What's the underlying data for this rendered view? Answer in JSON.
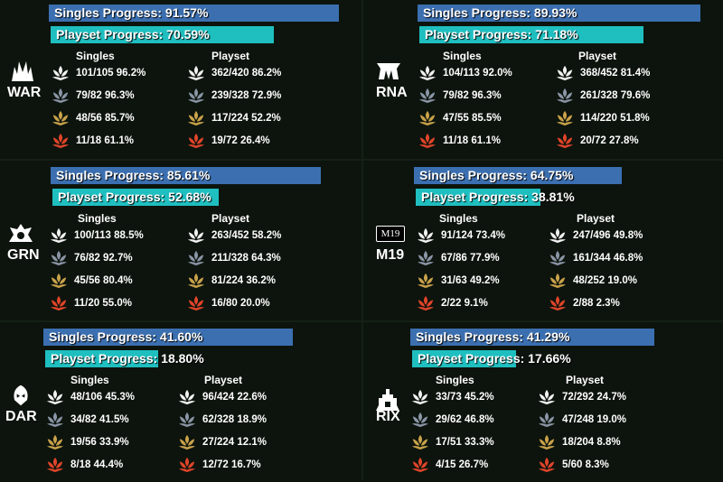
{
  "labels": {
    "singles_col": "Singles",
    "playset_col": "Playset"
  },
  "colors": {
    "singles_bar": "#3b6fb0",
    "playset_bar": "#1fbfc0",
    "common": "#f2f2f2",
    "uncommon": "#8a95a6",
    "rare": "#c9a24a",
    "mythic": "#e0452a"
  },
  "rarity_icons": [
    "common-rarity-icon",
    "uncommon-rarity-icon",
    "rare-rarity-icon",
    "mythic-rarity-icon"
  ],
  "sets": [
    {
      "code": "WAR",
      "icon": "war-set-icon",
      "singles_progress_label": "Singles Progress: 91.57%",
      "singles_progress": 0.9157,
      "playset_progress_label": "Playset Progress: 70.59%",
      "playset_progress": 0.7059,
      "singles": [
        "101/105 96.2%",
        "79/82 96.3%",
        "48/56 85.7%",
        "11/18 61.1%"
      ],
      "playset": [
        "362/420 86.2%",
        "239/328 72.9%",
        "117/224 52.2%",
        "19/72 26.4%"
      ]
    },
    {
      "code": "RNA",
      "icon": "rna-set-icon",
      "singles_progress_label": "Singles Progress: 89.93%",
      "singles_progress": 0.8993,
      "playset_progress_label": "Playset Progress: 71.18%",
      "playset_progress": 0.7118,
      "singles": [
        "104/113 92.0%",
        "79/82 96.3%",
        "47/55 85.5%",
        "11/18 61.1%"
      ],
      "playset": [
        "368/452 81.4%",
        "261/328 79.6%",
        "114/220 51.8%",
        "20/72 27.8%"
      ]
    },
    {
      "code": "GRN",
      "icon": "grn-set-icon",
      "singles_progress_label": "Singles Progress: 85.61%",
      "singles_progress": 0.8561,
      "playset_progress_label": "Playset Progress: 52.68%",
      "playset_progress": 0.5268,
      "singles": [
        "100/113 88.5%",
        "76/82 92.7%",
        "45/56 80.4%",
        "11/20 55.0%"
      ],
      "playset": [
        "263/452 58.2%",
        "211/328 64.3%",
        "81/224 36.2%",
        "16/80 20.0%"
      ]
    },
    {
      "code": "M19",
      "icon": "m19-set-icon",
      "icon_text": "M19",
      "singles_progress_label": "Singles Progress: 64.75%",
      "singles_progress": 0.6475,
      "playset_progress_label": "Playset Progress: 38.81%",
      "playset_progress": 0.3881,
      "singles": [
        "91/124 73.4%",
        "67/86 77.9%",
        "31/63 49.2%",
        "2/22 9.1%"
      ],
      "playset": [
        "247/496 49.8%",
        "161/344 46.8%",
        "48/252 19.0%",
        "2/88 2.3%"
      ]
    },
    {
      "code": "DAR",
      "icon": "dar-set-icon",
      "singles_progress_label": "Singles Progress: 41.60%",
      "singles_progress": 0.416,
      "playset_progress_label": "Playset Progress: 18.80%",
      "playset_progress": 0.188,
      "singles": [
        "48/106 45.3%",
        "34/82 41.5%",
        "19/56 33.9%",
        "8/18 44.4%"
      ],
      "playset": [
        "96/424 22.6%",
        "62/328 18.9%",
        "27/224 12.1%",
        "12/72 16.7%"
      ]
    },
    {
      "code": "RIX",
      "icon": "rix-set-icon",
      "singles_progress_label": "Singles Progress: 41.29%",
      "singles_progress": 0.4129,
      "playset_progress_label": "Playset Progress: 17.66%",
      "playset_progress": 0.1766,
      "singles": [
        "33/73 45.2%",
        "29/62 46.8%",
        "17/51 33.3%",
        "4/15 26.7%"
      ],
      "playset": [
        "72/292 24.7%",
        "47/248 19.0%",
        "18/204 8.8%",
        "5/60 8.3%"
      ]
    }
  ]
}
